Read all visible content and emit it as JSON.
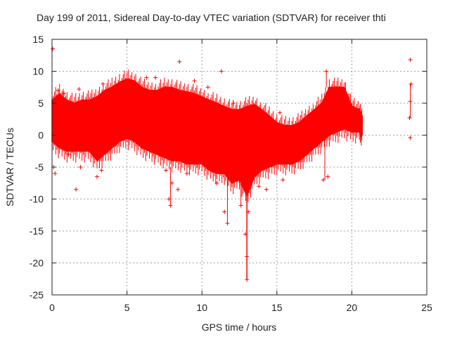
{
  "chart_data": {
    "type": "scatter",
    "title": "Day 199 of 2011, Sidereal Day-to-day VTEC variation (SDTVAR) for receiver thti",
    "xlabel": "GPS time / hours",
    "ylabel": "SDTVAR / TECUs",
    "xlim": [
      0,
      25
    ],
    "ylim": [
      -25,
      15
    ],
    "x_ticks": [
      0,
      5,
      10,
      15,
      20,
      25
    ],
    "y_ticks": [
      -25,
      -20,
      -15,
      -10,
      -5,
      0,
      5,
      10,
      15
    ],
    "grid": true,
    "series_color": "#ff0000",
    "band": {
      "x": [
        0.0,
        0.5,
        1.0,
        1.5,
        2.0,
        2.5,
        3.0,
        3.5,
        4.0,
        4.5,
        5.0,
        5.5,
        6.0,
        6.5,
        7.0,
        7.5,
        8.0,
        8.5,
        9.0,
        9.5,
        10.0,
        10.5,
        11.0,
        11.5,
        12.0,
        12.5,
        13.0,
        13.5,
        14.0,
        14.5,
        15.0,
        15.5,
        16.0,
        16.5,
        17.0,
        17.5,
        18.0,
        18.5,
        19.0,
        19.5,
        20.0,
        20.5,
        20.7
      ],
      "upper": [
        5.5,
        6.5,
        5.5,
        5.0,
        5.5,
        5.5,
        6.0,
        7.0,
        7.5,
        8.3,
        8.8,
        8.5,
        7.5,
        7.0,
        7.0,
        7.5,
        7.5,
        7.0,
        6.8,
        6.5,
        6.0,
        5.5,
        5.0,
        4.5,
        4.0,
        4.0,
        4.5,
        4.8,
        4.0,
        3.0,
        2.0,
        1.5,
        1.5,
        2.0,
        3.0,
        4.0,
        5.0,
        7.5,
        7.5,
        7.5,
        4.5,
        4.0,
        3.0
      ],
      "lower": [
        -1.0,
        -2.0,
        -2.5,
        -2.5,
        -2.5,
        -2.5,
        -4.0,
        -3.0,
        -2.0,
        -1.0,
        -0.5,
        -1.0,
        -2.0,
        -2.5,
        -3.0,
        -3.5,
        -4.0,
        -4.0,
        -4.5,
        -4.5,
        -4.5,
        -5.5,
        -6.0,
        -6.0,
        -7.5,
        -7.0,
        -9.5,
        -6.5,
        -5.5,
        -5.0,
        -4.5,
        -4.5,
        -4.5,
        -4.0,
        -3.0,
        -2.0,
        -1.0,
        0.0,
        0.5,
        1.0,
        0.5,
        0.5,
        0.0
      ]
    },
    "points": [
      {
        "x": 0.05,
        "y": 13.5
      },
      {
        "x": 0.1,
        "y": -5.0
      },
      {
        "x": 0.2,
        "y": -6.0
      },
      {
        "x": 0.4,
        "y": 7.0
      },
      {
        "x": 0.8,
        "y": 6.5
      },
      {
        "x": 1.1,
        "y": -3.0
      },
      {
        "x": 1.6,
        "y": -8.5
      },
      {
        "x": 1.9,
        "y": -5.0
      },
      {
        "x": 1.8,
        "y": 7.2
      },
      {
        "x": 3.4,
        "y": 8.0
      },
      {
        "x": 3.3,
        "y": -5.5
      },
      {
        "x": 3.0,
        "y": -6.5
      },
      {
        "x": 6.3,
        "y": 9.0
      },
      {
        "x": 6.9,
        "y": 9.0
      },
      {
        "x": 7.6,
        "y": -5.5
      },
      {
        "x": 8.0,
        "y": -7.5
      },
      {
        "x": 7.9,
        "y": -11.0
      },
      {
        "x": 7.8,
        "y": -10.0
      },
      {
        "x": 8.4,
        "y": -8.5
      },
      {
        "x": 8.5,
        "y": 11.5
      },
      {
        "x": 9.0,
        "y": -6.0
      },
      {
        "x": 9.5,
        "y": 8.5
      },
      {
        "x": 10.4,
        "y": 7.5
      },
      {
        "x": 11.0,
        "y": -7.5
      },
      {
        "x": 11.3,
        "y": 10.0
      },
      {
        "x": 11.5,
        "y": -12.0
      },
      {
        "x": 11.7,
        "y": -13.8
      },
      {
        "x": 12.1,
        "y": 5.0
      },
      {
        "x": 12.6,
        "y": -11.0
      },
      {
        "x": 13.0,
        "y": -22.6
      },
      {
        "x": 13.0,
        "y": -19.0
      },
      {
        "x": 12.9,
        "y": -15.5
      },
      {
        "x": 13.1,
        "y": -12.0
      },
      {
        "x": 13.4,
        "y": 3.5
      },
      {
        "x": 13.8,
        "y": -8.0
      },
      {
        "x": 14.3,
        "y": -8.5
      },
      {
        "x": 15.2,
        "y": 3.5
      },
      {
        "x": 15.4,
        "y": -7.0
      },
      {
        "x": 18.3,
        "y": 10.0
      },
      {
        "x": 18.1,
        "y": -7.0
      },
      {
        "x": 18.4,
        "y": -6.5
      },
      {
        "x": 20.0,
        "y": 4.5
      },
      {
        "x": 23.9,
        "y": 11.8
      },
      {
        "x": 23.95,
        "y": 8.0
      },
      {
        "x": 23.9,
        "y": 5.3
      },
      {
        "x": 23.85,
        "y": 2.7
      },
      {
        "x": 23.9,
        "y": -0.4
      }
    ]
  }
}
